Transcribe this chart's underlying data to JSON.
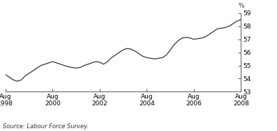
{
  "title": "",
  "ylabel": "%",
  "source": "Source: Labour Force Survey.",
  "x_tick_labels": [
    "Aug\n1998",
    "Aug\n2000",
    "Aug\n2002",
    "Aug\n2004",
    "Aug\n2006",
    "Aug\n2008"
  ],
  "x_tick_positions": [
    0,
    24,
    48,
    72,
    96,
    120
  ],
  "ylim": [
    53,
    59
  ],
  "yticks": [
    53,
    54,
    55,
    56,
    57,
    58,
    59
  ],
  "line_color": "#333333",
  "line_width": 0.9,
  "x_data": [
    0,
    2,
    4,
    6,
    8,
    10,
    12,
    14,
    16,
    18,
    20,
    22,
    24,
    26,
    28,
    30,
    32,
    34,
    36,
    38,
    40,
    42,
    44,
    46,
    48,
    50,
    52,
    54,
    56,
    58,
    60,
    62,
    64,
    66,
    68,
    70,
    72,
    74,
    76,
    78,
    80,
    82,
    84,
    86,
    88,
    90,
    92,
    94,
    96,
    98,
    100,
    102,
    104,
    106,
    108,
    110,
    112,
    114,
    116,
    118,
    120
  ],
  "y_data": [
    54.3,
    54.1,
    53.9,
    53.8,
    53.9,
    54.2,
    54.4,
    54.6,
    54.8,
    55.0,
    55.1,
    55.2,
    55.3,
    55.2,
    55.1,
    55.0,
    54.9,
    54.85,
    54.8,
    54.85,
    55.0,
    55.1,
    55.2,
    55.3,
    55.25,
    55.1,
    55.3,
    55.6,
    55.8,
    56.0,
    56.2,
    56.3,
    56.25,
    56.1,
    55.9,
    55.7,
    55.6,
    55.55,
    55.5,
    55.55,
    55.6,
    55.8,
    56.2,
    56.6,
    56.9,
    57.1,
    57.15,
    57.1,
    57.0,
    57.05,
    57.1,
    57.2,
    57.4,
    57.6,
    57.8,
    57.85,
    57.9,
    58.0,
    58.2,
    58.4,
    58.5
  ],
  "bg_color": "#ffffff",
  "font_size": 6.5,
  "source_font_size": 6.0
}
